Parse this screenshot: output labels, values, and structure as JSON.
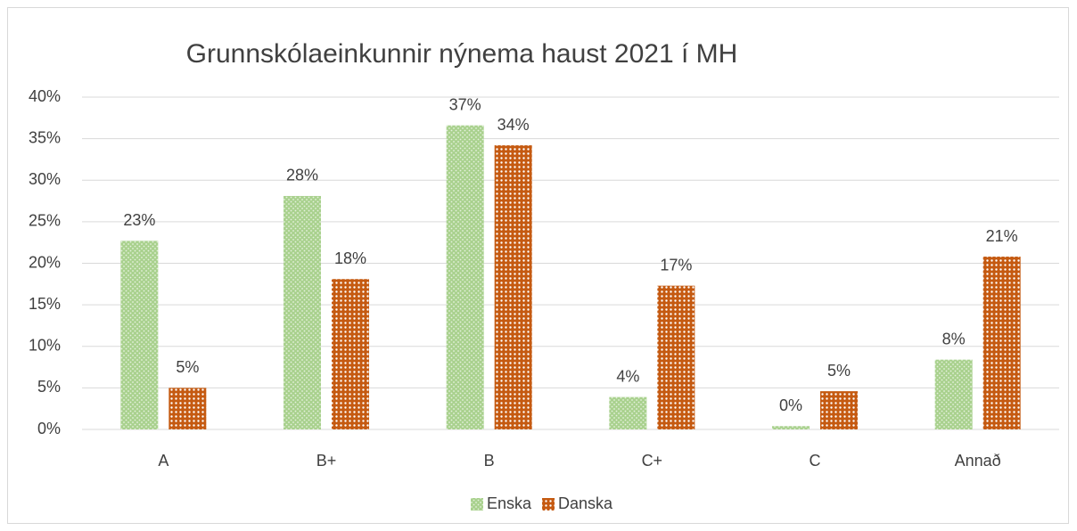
{
  "chart_data": {
    "type": "bar",
    "title": "Grunnskólaeinkunnir nýnema haust 2021 í MH",
    "categories": [
      "A",
      "B+",
      "B",
      "C+",
      "C",
      "Annað"
    ],
    "series": [
      {
        "name": "Enska",
        "color": "#a9d18e",
        "values": [
          22.7,
          28.1,
          36.6,
          3.9,
          0.4,
          8.4
        ],
        "value_labels": [
          "23%",
          "28%",
          "37%",
          "4%",
          "0%",
          "8%"
        ]
      },
      {
        "name": "Danska",
        "color": "#c55a11",
        "values": [
          5.0,
          18.1,
          34.2,
          17.3,
          4.6,
          20.8
        ],
        "value_labels": [
          "5%",
          "18%",
          "34%",
          "17%",
          "5%",
          "21%"
        ]
      }
    ],
    "ylim": [
      0,
      40
    ],
    "yticks": [
      {
        "value": 0,
        "label": "0%"
      },
      {
        "value": 5,
        "label": "5%"
      },
      {
        "value": 10,
        "label": "10%"
      },
      {
        "value": 15,
        "label": "15%"
      },
      {
        "value": 20,
        "label": "20%"
      },
      {
        "value": 25,
        "label": "25%"
      },
      {
        "value": 30,
        "label": "30%"
      },
      {
        "value": 35,
        "label": "35%"
      },
      {
        "value": 40,
        "label": "40%"
      }
    ],
    "grid": true,
    "legend": "bottom"
  }
}
